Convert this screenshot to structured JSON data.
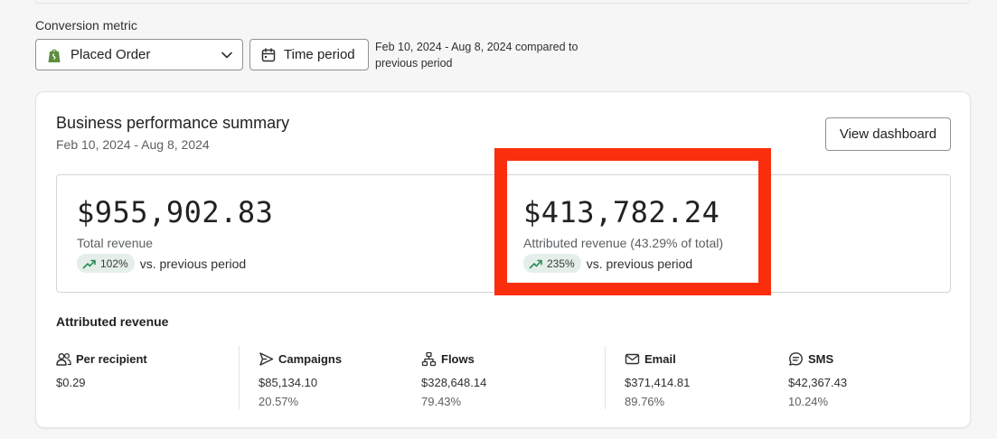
{
  "filters": {
    "metric_label": "Conversion metric",
    "metric_value": "Placed Order",
    "time_button_label": "Time period",
    "period_description": "Feb 10, 2024 - Aug 8, 2024 compared to previous period"
  },
  "summary": {
    "title": "Business performance summary",
    "date_range": "Feb 10, 2024 - Aug 8, 2024",
    "view_dashboard_label": "View dashboard",
    "total": {
      "value": "$955,902.83",
      "label": "Total revenue",
      "change": "102%",
      "change_text": "vs. previous period"
    },
    "attributed": {
      "value": "$413,782.24",
      "label": "Attributed revenue (43.29% of total)",
      "change": "235%",
      "change_text": "vs. previous period"
    }
  },
  "attributed_breakdown": {
    "title": "Attributed revenue",
    "per_recipient": {
      "label": "Per recipient",
      "value": "$0.29"
    },
    "campaigns": {
      "label": "Campaigns",
      "value": "$85,134.10",
      "pct": "20.57%"
    },
    "flows": {
      "label": "Flows",
      "value": "$328,648.14",
      "pct": "79.43%"
    },
    "email": {
      "label": "Email",
      "value": "$371,414.81",
      "pct": "89.76%"
    },
    "sms": {
      "label": "SMS",
      "value": "$42,367.43",
      "pct": "10.24%"
    }
  },
  "colors": {
    "highlight": "#fa2e0c",
    "positive_badge": "#e4efe9",
    "positive_icon": "#2e8a57",
    "shopify_green": "#5e8e3e"
  }
}
